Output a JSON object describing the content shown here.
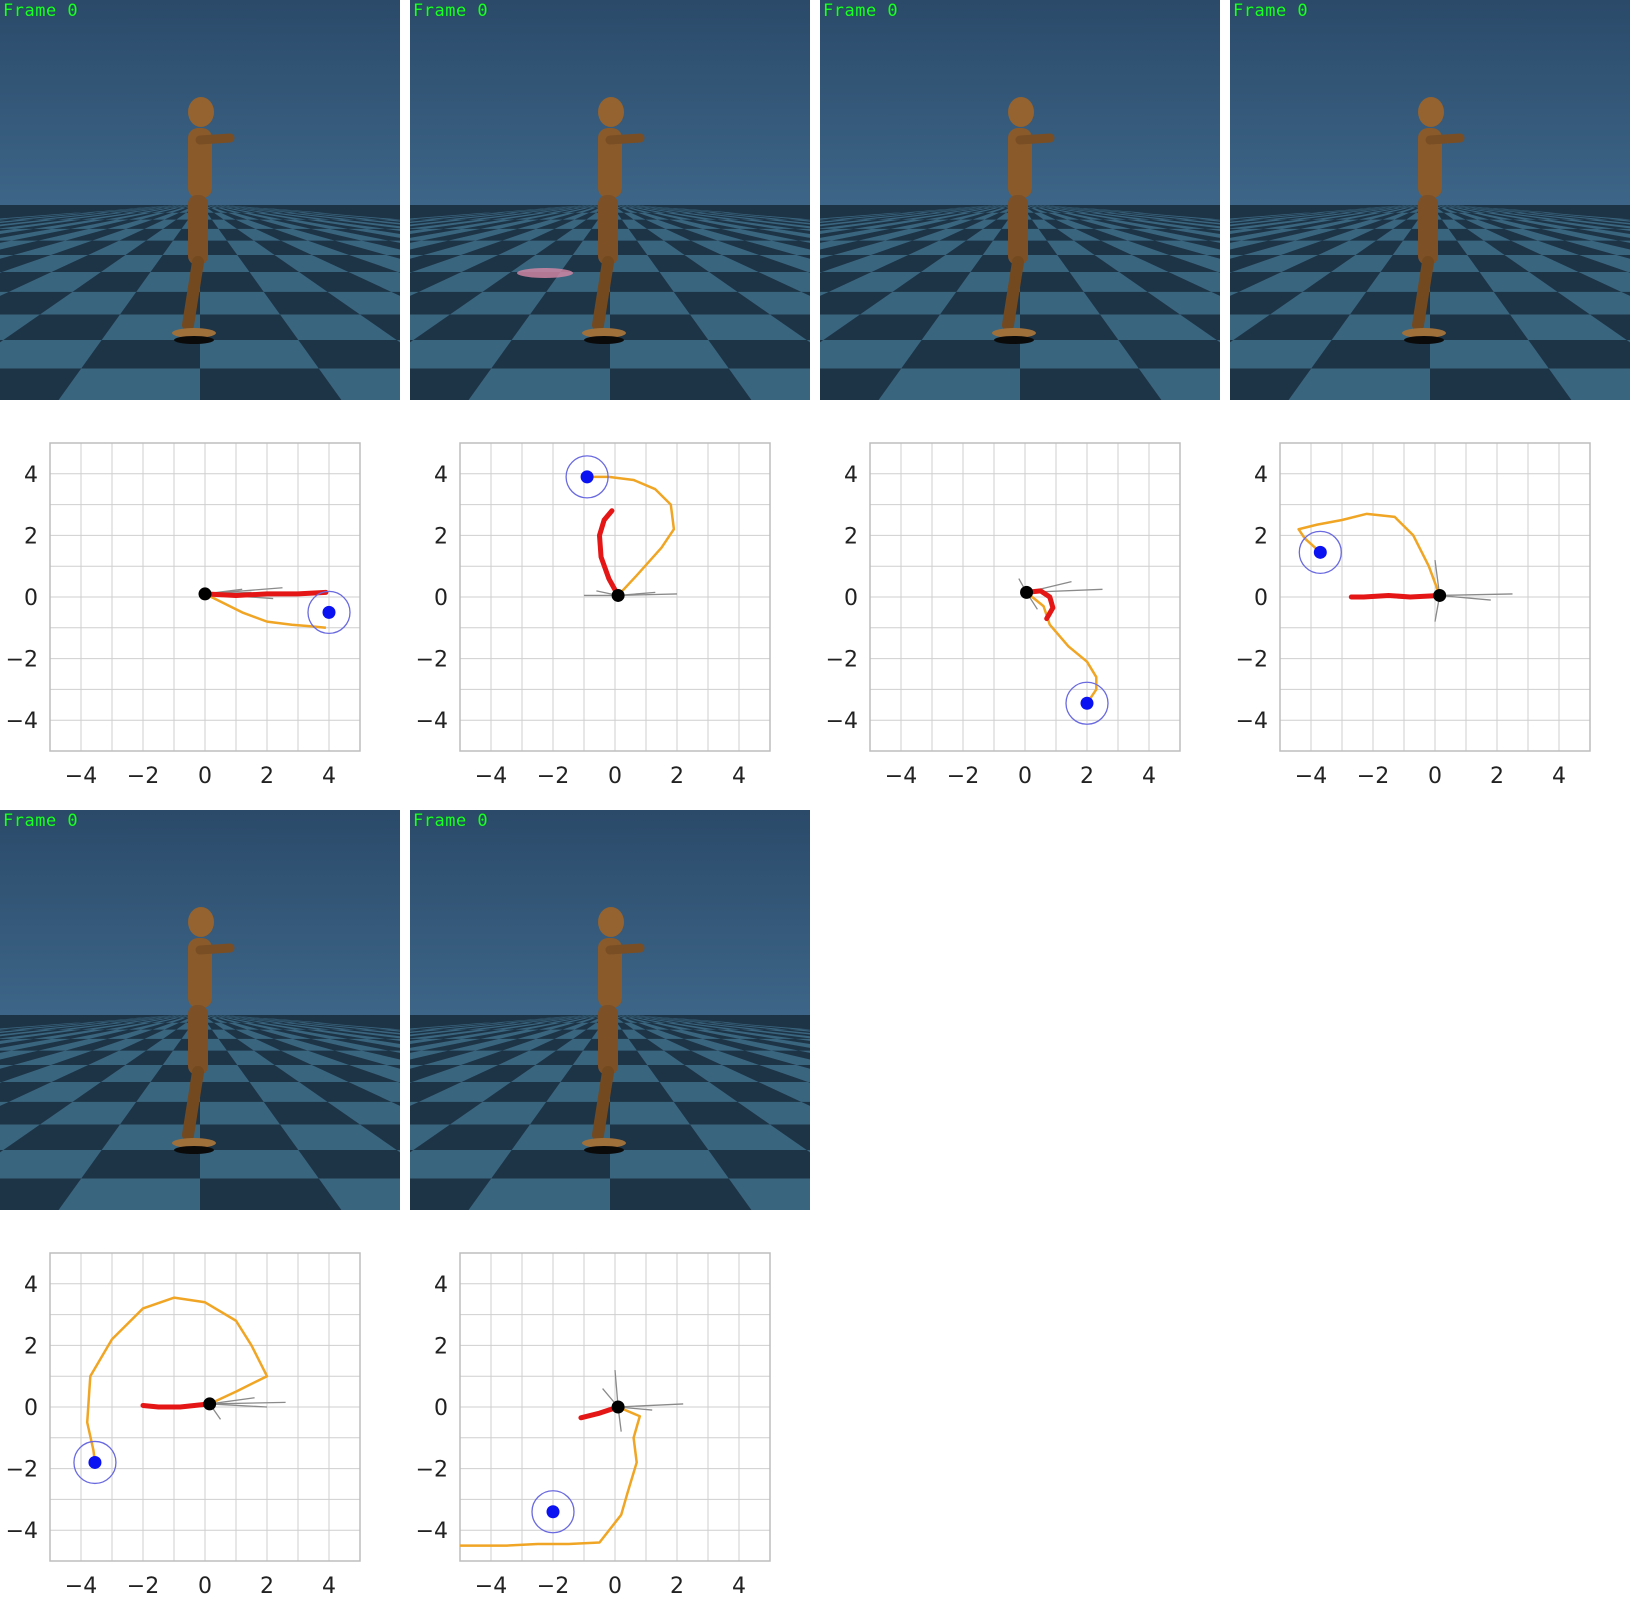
{
  "panels": [
    {
      "frame_label": "Frame 0",
      "chart_data": {
        "type": "line",
        "xlim": [
          -5,
          5
        ],
        "ylim": [
          -5,
          5
        ],
        "xticks": [
          "−4",
          "−2",
          "0",
          "2",
          "4"
        ],
        "yticks": [
          "4",
          "2",
          "0",
          "−2",
          "−4"
        ],
        "grid": true,
        "agent": [
          0,
          0.1
        ],
        "target": [
          4,
          -0.5
        ],
        "planned_path": [
          [
            0,
            0.1
          ],
          [
            0.6,
            -0.2
          ],
          [
            1.2,
            -0.5
          ],
          [
            2,
            -0.8
          ],
          [
            2.8,
            -0.9
          ],
          [
            3.4,
            -0.95
          ],
          [
            3.9,
            -1
          ]
        ],
        "walked_path": [
          [
            0,
            0.1
          ],
          [
            1,
            0.05
          ],
          [
            2,
            0.1
          ],
          [
            3,
            0.1
          ],
          [
            3.9,
            0.15
          ]
        ],
        "feet_lines": [
          [
            [
              0,
              0.1
            ],
            [
              1.5,
              0.15
            ]
          ],
          [
            [
              0,
              0.1
            ],
            [
              2.5,
              0.3
            ]
          ],
          [
            [
              0,
              0.1
            ],
            [
              2.2,
              -0.05
            ]
          ],
          [
            [
              0,
              0.1
            ],
            [
              1.2,
              0.25
            ]
          ]
        ]
      },
      "colors": {
        "ground": "#3f6f8a",
        "sky": "#2c4e70"
      }
    },
    {
      "frame_label": "Frame 0",
      "chart_data": {
        "type": "line",
        "xlim": [
          -5,
          5
        ],
        "ylim": [
          -5,
          5
        ],
        "xticks": [
          "−4",
          "−2",
          "0",
          "2",
          "4"
        ],
        "yticks": [
          "4",
          "2",
          "0",
          "−2",
          "−4"
        ],
        "grid": true,
        "agent": [
          0.1,
          0.05
        ],
        "target": [
          -0.9,
          3.9
        ],
        "planned_path": [
          [
            0.1,
            0.05
          ],
          [
            0.7,
            0.7
          ],
          [
            1.5,
            1.6
          ],
          [
            1.9,
            2.2
          ],
          [
            1.8,
            3
          ],
          [
            1.3,
            3.5
          ],
          [
            0.6,
            3.8
          ],
          [
            -0.2,
            3.9
          ],
          [
            -0.9,
            3.9
          ]
        ],
        "walked_path": [
          [
            0.1,
            0.05
          ],
          [
            -0.2,
            0.6
          ],
          [
            -0.45,
            1.3
          ],
          [
            -0.5,
            2
          ],
          [
            -0.35,
            2.5
          ],
          [
            -0.1,
            2.8
          ]
        ],
        "feet_lines": [
          [
            [
              0.1,
              0.05
            ],
            [
              -1,
              0.05
            ]
          ],
          [
            [
              0.1,
              0.05
            ],
            [
              2,
              0.1
            ]
          ],
          [
            [
              0.1,
              0.05
            ],
            [
              1.3,
              0.15
            ]
          ],
          [
            [
              0.1,
              0.05
            ],
            [
              -0.6,
              0.2
            ]
          ]
        ]
      },
      "colors": {
        "ground": "#3f6f8a",
        "sky": "#2c4e70"
      }
    },
    {
      "frame_label": "Frame 0",
      "chart_data": {
        "type": "line",
        "xlim": [
          -5,
          5
        ],
        "ylim": [
          -5,
          5
        ],
        "xticks": [
          "−4",
          "−2",
          "0",
          "2",
          "4"
        ],
        "yticks": [
          "4",
          "2",
          "0",
          "−2",
          "−4"
        ],
        "grid": true,
        "agent": [
          0.05,
          0.15
        ],
        "target": [
          2,
          -3.45
        ],
        "planned_path": [
          [
            0.05,
            0.15
          ],
          [
            0.6,
            -0.3
          ],
          [
            0.8,
            -0.9
          ],
          [
            1.4,
            -1.6
          ],
          [
            2,
            -2.1
          ],
          [
            2.3,
            -2.6
          ],
          [
            2.3,
            -3
          ],
          [
            2,
            -3.45
          ]
        ],
        "walked_path": [
          [
            0.05,
            0.15
          ],
          [
            0.5,
            0.2
          ],
          [
            0.8,
            0
          ],
          [
            0.9,
            -0.35
          ],
          [
            0.7,
            -0.7
          ]
        ],
        "feet_lines": [
          [
            [
              0.05,
              0.15
            ],
            [
              2.5,
              0.25
            ]
          ],
          [
            [
              0.05,
              0.15
            ],
            [
              1.5,
              0.5
            ]
          ],
          [
            [
              0.05,
              0.15
            ],
            [
              -0.2,
              0.6
            ]
          ],
          [
            [
              0.05,
              0.15
            ],
            [
              0.4,
              -0.4
            ]
          ]
        ]
      },
      "colors": {
        "ground": "#3f6f8a",
        "sky": "#2c4e70"
      }
    },
    {
      "frame_label": "Frame 0",
      "chart_data": {
        "type": "line",
        "xlim": [
          -5,
          5
        ],
        "ylim": [
          -5,
          5
        ],
        "xticks": [
          "−4",
          "−2",
          "0",
          "2",
          "4"
        ],
        "yticks": [
          "4",
          "2",
          "0",
          "−2",
          "−4"
        ],
        "grid": true,
        "agent": [
          0.15,
          0.05
        ],
        "target": [
          -3.7,
          1.45
        ],
        "planned_path": [
          [
            0.15,
            0.05
          ],
          [
            -0.2,
            1
          ],
          [
            -0.7,
            2
          ],
          [
            -1.3,
            2.6
          ],
          [
            -2.2,
            2.7
          ],
          [
            -3,
            2.5
          ],
          [
            -3.8,
            2.35
          ],
          [
            -4.4,
            2.2
          ],
          [
            -4.2,
            1.9
          ],
          [
            -3.7,
            1.45
          ]
        ],
        "walked_path": [
          [
            0.15,
            0.05
          ],
          [
            -0.8,
            0
          ],
          [
            -1.5,
            0.05
          ],
          [
            -2.3,
            0
          ],
          [
            -2.7,
            0
          ]
        ],
        "feet_lines": [
          [
            [
              0.15,
              0.05
            ],
            [
              2.5,
              0.1
            ]
          ],
          [
            [
              0.15,
              0.05
            ],
            [
              1.8,
              -0.1
            ]
          ],
          [
            [
              0.15,
              0.05
            ],
            [
              0,
              1.2
            ]
          ],
          [
            [
              0.15,
              0.05
            ],
            [
              0,
              -0.8
            ]
          ]
        ]
      },
      "colors": {
        "ground": "#3f6f8a",
        "sky": "#2c4e70"
      }
    },
    {
      "frame_label": "Frame 0",
      "chart_data": {
        "type": "line",
        "xlim": [
          -5,
          5
        ],
        "ylim": [
          -5,
          5
        ],
        "xticks": [
          "−4",
          "−2",
          "0",
          "2",
          "4"
        ],
        "yticks": [
          "4",
          "2",
          "0",
          "−2",
          "−4"
        ],
        "grid": true,
        "agent": [
          0.15,
          0.1
        ],
        "target": [
          -3.55,
          -1.8
        ],
        "planned_path": [
          [
            0.15,
            0.1
          ],
          [
            1,
            0.5
          ],
          [
            2,
            1
          ],
          [
            1.5,
            2
          ],
          [
            1,
            2.8
          ],
          [
            0,
            3.4
          ],
          [
            -1,
            3.55
          ],
          [
            -2,
            3.2
          ],
          [
            -3,
            2.2
          ],
          [
            -3.7,
            1
          ],
          [
            -3.8,
            -0.5
          ],
          [
            -3.6,
            -1.4
          ],
          [
            -3.55,
            -1.8
          ]
        ],
        "walked_path": [
          [
            0.15,
            0.1
          ],
          [
            -0.8,
            0
          ],
          [
            -1.5,
            0
          ],
          [
            -2,
            0.05
          ]
        ],
        "feet_lines": [
          [
            [
              0.15,
              0.1
            ],
            [
              2.6,
              0.15
            ]
          ],
          [
            [
              0.15,
              0.1
            ],
            [
              1.6,
              0.3
            ]
          ],
          [
            [
              0.15,
              0.1
            ],
            [
              0.5,
              -0.4
            ]
          ],
          [
            [
              0.15,
              0.1
            ],
            [
              2,
              0
            ]
          ]
        ]
      },
      "colors": {
        "ground": "#3f6f8a",
        "sky": "#2c4e70"
      }
    },
    {
      "frame_label": "Frame 0",
      "chart_data": {
        "type": "line",
        "xlim": [
          -5,
          5
        ],
        "ylim": [
          -5,
          5
        ],
        "xticks": [
          "−4",
          "−2",
          "0",
          "2",
          "4"
        ],
        "yticks": [
          "4",
          "2",
          "0",
          "−2",
          "−4"
        ],
        "grid": true,
        "agent": [
          0.1,
          0
        ],
        "target": [
          -2,
          -3.4
        ],
        "planned_path": [
          [
            0.1,
            0
          ],
          [
            0.8,
            -0.3
          ],
          [
            0.6,
            -1
          ],
          [
            0.7,
            -1.8
          ],
          [
            0.4,
            -2.8
          ],
          [
            0.2,
            -3.5
          ],
          [
            -0.5,
            -4.4
          ],
          [
            -1.5,
            -4.45
          ],
          [
            -2.5,
            -4.45
          ],
          [
            -3.5,
            -4.5
          ],
          [
            -4.5,
            -4.5
          ],
          [
            -5,
            -4.5
          ]
        ],
        "walked_path": [
          [
            0.1,
            0
          ],
          [
            -0.5,
            -0.2
          ],
          [
            -1.1,
            -0.35
          ]
        ],
        "feet_lines": [
          [
            [
              0.1,
              0
            ],
            [
              2.2,
              0.1
            ]
          ],
          [
            [
              0.1,
              0
            ],
            [
              1.2,
              -0.1
            ]
          ],
          [
            [
              0.1,
              0
            ],
            [
              0,
              1.2
            ]
          ],
          [
            [
              0.1,
              0
            ],
            [
              0.2,
              -0.8
            ]
          ],
          [
            [
              0.1,
              0
            ],
            [
              -0.4,
              0.6
            ]
          ]
        ]
      },
      "colors": {
        "ground": "#3f6f8a",
        "sky": "#2c4e70"
      }
    }
  ],
  "style": {
    "planned_color": "#f0a524",
    "walked_color": "#e41616",
    "target_color": "#0b12f2",
    "target_ring_color": "#6a6ae0",
    "agent_color": "#000000",
    "feet_color": "#8a8a8a",
    "grid_color": "#cfcfcf",
    "frame_label_color": "#19ff2a"
  }
}
